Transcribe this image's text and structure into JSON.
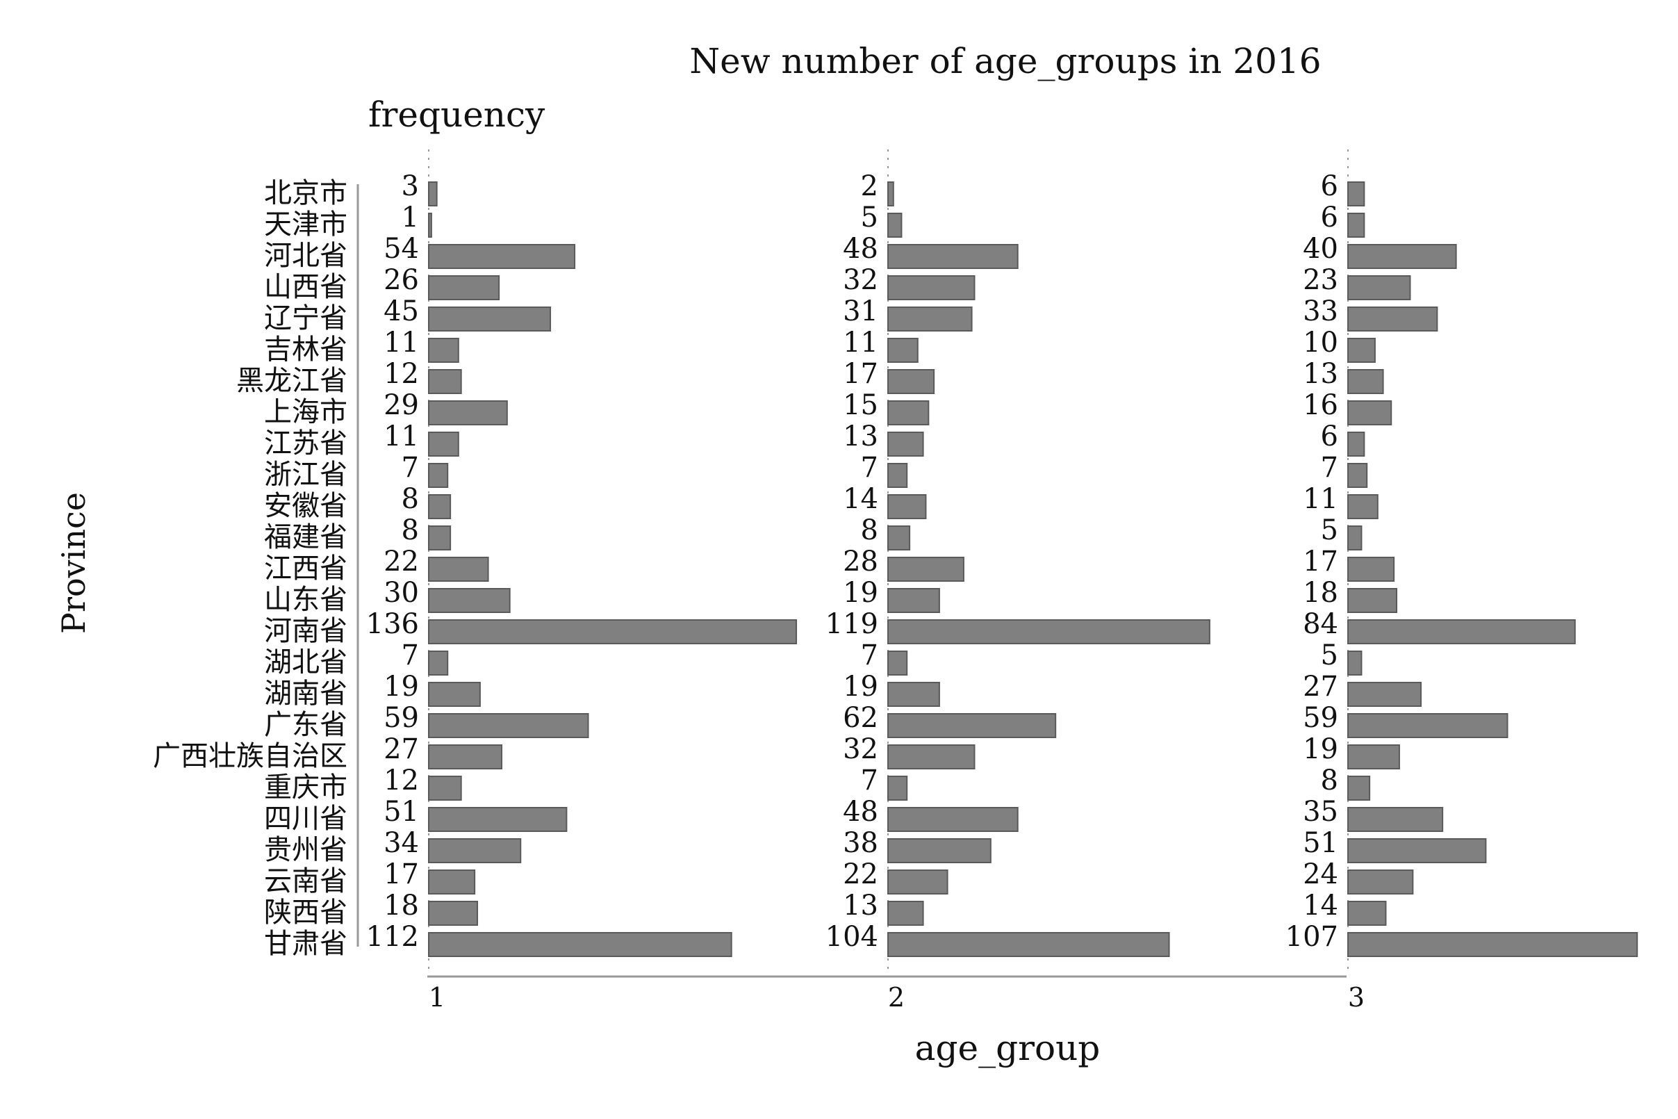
{
  "chart_data": {
    "type": "bar",
    "orientation": "horizontal",
    "title": "New number of age_groups in 2016",
    "xlabel": "age_group",
    "ylabel": "Province",
    "value_label": "frequency",
    "facets": [
      "1",
      "2",
      "3"
    ],
    "categories": [
      "北京市",
      "天津市",
      "河北省",
      "山西省",
      "辽宁省",
      "吉林省",
      "黑龙江省",
      "上海市",
      "江苏省",
      "浙江省",
      "安徽省",
      "福建省",
      "江西省",
      "山东省",
      "河南省",
      "湖北省",
      "湖南省",
      "广东省",
      "广西壮族自治区",
      "重庆市",
      "四川省",
      "贵州省",
      "云南省",
      "陕西省",
      "甘肃省"
    ],
    "series": [
      {
        "facet": "1",
        "values": [
          3,
          1,
          54,
          26,
          45,
          11,
          12,
          29,
          11,
          7,
          8,
          8,
          22,
          30,
          136,
          7,
          19,
          59,
          27,
          12,
          51,
          34,
          17,
          18,
          112
        ]
      },
      {
        "facet": "2",
        "values": [
          2,
          5,
          48,
          32,
          31,
          11,
          17,
          15,
          13,
          7,
          14,
          8,
          28,
          19,
          119,
          7,
          19,
          62,
          32,
          7,
          48,
          38,
          22,
          13,
          104
        ]
      },
      {
        "facet": "3",
        "values": [
          6,
          6,
          40,
          23,
          33,
          10,
          13,
          16,
          6,
          7,
          11,
          5,
          17,
          18,
          84,
          5,
          27,
          59,
          19,
          8,
          35,
          51,
          24,
          14,
          107
        ]
      }
    ],
    "bar_color": "#808080",
    "bar_edge_color": "#5a5a5a",
    "axis_color": "#999999",
    "grid": false,
    "legend": "none"
  }
}
